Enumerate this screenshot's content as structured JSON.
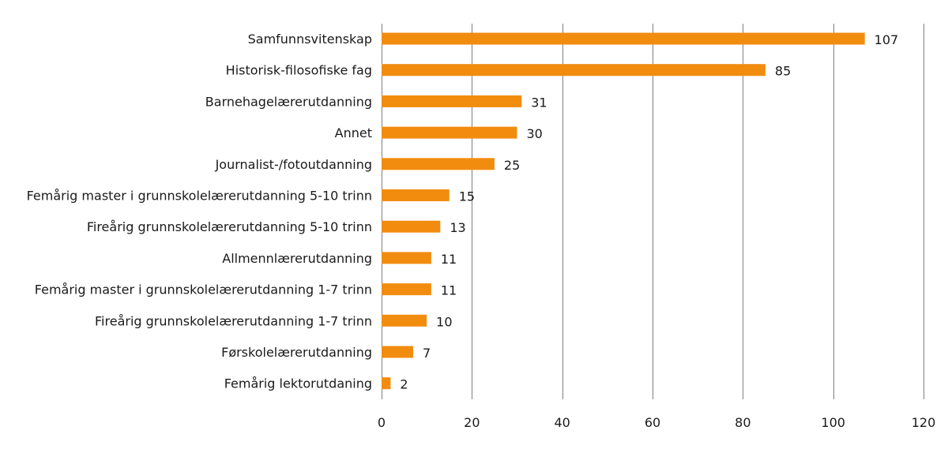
{
  "chart_data": {
    "type": "bar",
    "orientation": "horizontal",
    "title": "",
    "xlabel": "",
    "ylabel": "",
    "categories": [
      "Samfunnsvitenskap",
      "Historisk-filosofiske fag",
      "Barnehagelærerutdanning",
      "Annet",
      "Journalist-/fotoutdanning",
      "Femårig master i grunnskolelærerutdanning 5-10 trinn",
      "Fireårig grunnskolelærerutdanning 5-10 trinn",
      "Allmennlærerutdanning",
      "Femårig master i grunnskolelærerutdanning 1-7 trinn",
      "Fireårig grunnskolelærerutdanning 1-7 trinn",
      "Førskolelærerutdanning",
      "Femårig lektorutdaning"
    ],
    "values": [
      107,
      85,
      31,
      30,
      25,
      15,
      13,
      11,
      11,
      10,
      7,
      2
    ],
    "xlim": [
      0,
      120
    ],
    "x_ticks": [
      0,
      20,
      40,
      60,
      80,
      100,
      120
    ],
    "grid": "vertical",
    "legend": "none",
    "bar_color": "#f28c0f"
  }
}
